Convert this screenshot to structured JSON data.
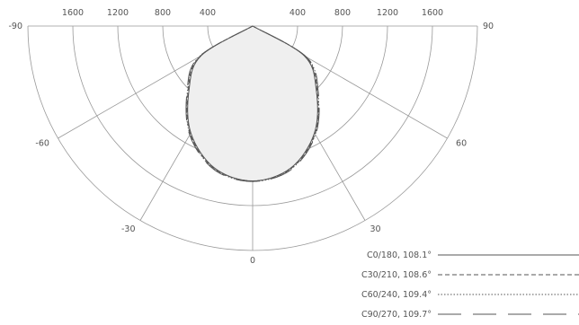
{
  "chart_data": {
    "type": "polar",
    "title": "",
    "r_max": 2000,
    "radial_ticks_left": [
      "1600",
      "1200",
      "800",
      "400"
    ],
    "radial_ticks_right": [
      "400",
      "800",
      "1200",
      "1600"
    ],
    "radial_tick_values": [
      1600,
      1200,
      800,
      400
    ],
    "angle_labels": [
      {
        "text": "-90",
        "angle": -90
      },
      {
        "text": "-60",
        "angle": -60
      },
      {
        "text": "-30",
        "angle": -30
      },
      {
        "text": "0",
        "angle": 0
      },
      {
        "text": "30",
        "angle": 30
      },
      {
        "text": "60",
        "angle": 60
      },
      {
        "text": "90",
        "angle": 90
      }
    ],
    "series": [
      {
        "name": "C0/180, 108.1°",
        "dash": "",
        "angles": [
          -60,
          -45,
          -30,
          -15,
          0,
          15,
          30,
          45,
          60
        ],
        "values": [
          530,
          800,
          1100,
          1310,
          1380,
          1310,
          1100,
          800,
          530
        ]
      },
      {
        "name": "C30/210, 108.6°",
        "dash": "5,3",
        "angles": [
          -60,
          -45,
          -30,
          -15,
          0,
          15,
          30,
          45,
          60
        ],
        "values": [
          540,
          810,
          1110,
          1315,
          1380,
          1315,
          1110,
          810,
          540
        ]
      },
      {
        "name": "C60/240, 109.4°",
        "dash": "1.5,2",
        "angles": [
          -60,
          -45,
          -30,
          -15,
          0,
          15,
          30,
          45,
          60
        ],
        "values": [
          550,
          820,
          1115,
          1320,
          1385,
          1320,
          1115,
          820,
          550
        ]
      },
      {
        "name": "C90/270, 109.7°",
        "dash": "26,13",
        "angles": [
          -60,
          -45,
          -30,
          -15,
          0,
          15,
          30,
          45,
          60
        ],
        "values": [
          555,
          825,
          1120,
          1325,
          1385,
          1325,
          1120,
          825,
          555
        ]
      }
    ],
    "fill_color": "#efefef",
    "line_color": "#555555",
    "grid_color": "#999999"
  }
}
